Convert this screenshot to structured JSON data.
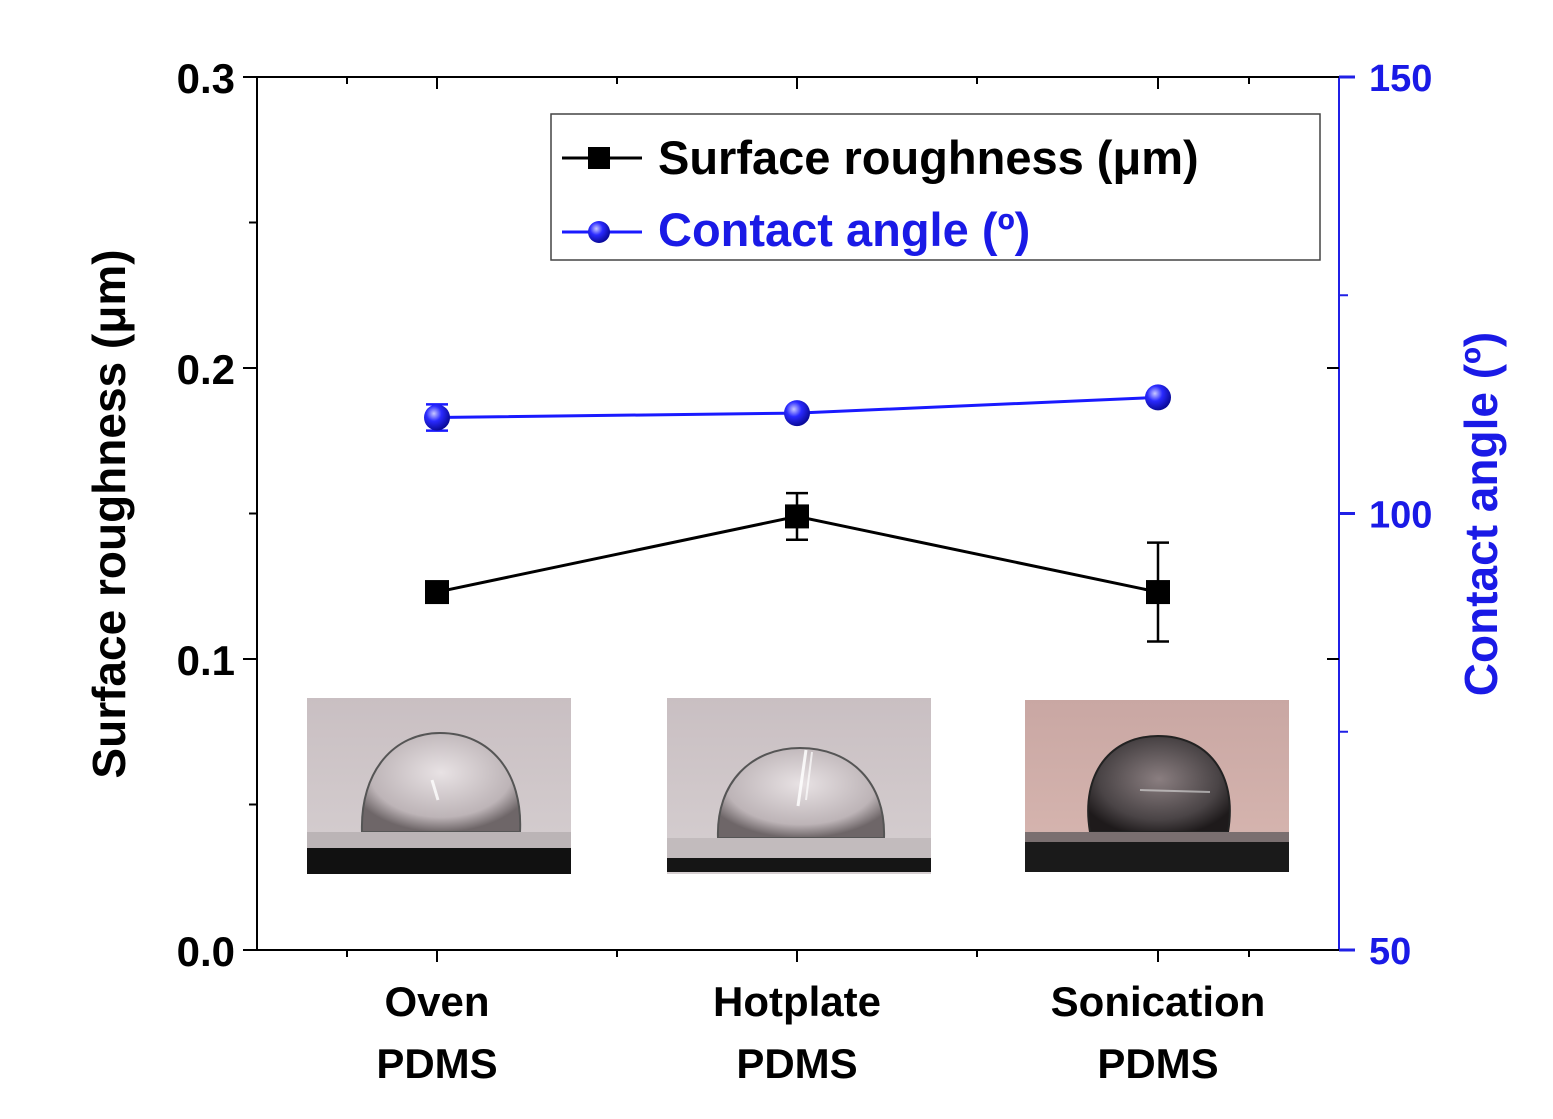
{
  "chart_data": {
    "type": "line",
    "title": "",
    "categories": [
      [
        "Oven",
        "PDMS"
      ],
      [
        "Hotplate",
        "PDMS"
      ],
      [
        "Sonication",
        "PDMS"
      ]
    ],
    "xlabel": "",
    "ylabel": "Surface roughness (μm)",
    "y2label": "Contact angle (º)",
    "ylim": [
      0.0,
      0.3
    ],
    "y2lim": [
      50,
      150
    ],
    "yticks": [
      "0.0",
      "0.1",
      "0.2",
      "0.3"
    ],
    "y2ticks": [
      "50",
      "100",
      "150"
    ],
    "grid": false,
    "legend_position": "top-right",
    "series": [
      {
        "name": "Surface roughness (μm)",
        "axis": "left",
        "marker": "square",
        "color": "#000000",
        "values": [
          0.123,
          0.149,
          0.123
        ],
        "errors": [
          0.0,
          0.008,
          0.017
        ]
      },
      {
        "name": "Contact angle (º)",
        "axis": "right",
        "marker": "circle",
        "color": "#1a1aff",
        "values": [
          111.0,
          111.5,
          113.3
        ],
        "errors": [
          1.5,
          0.0,
          0.0
        ]
      }
    ]
  },
  "colors": {
    "left_axis": "#000000",
    "right_axis": "#2020e6",
    "right_axis_text": "#1a1ae6"
  }
}
